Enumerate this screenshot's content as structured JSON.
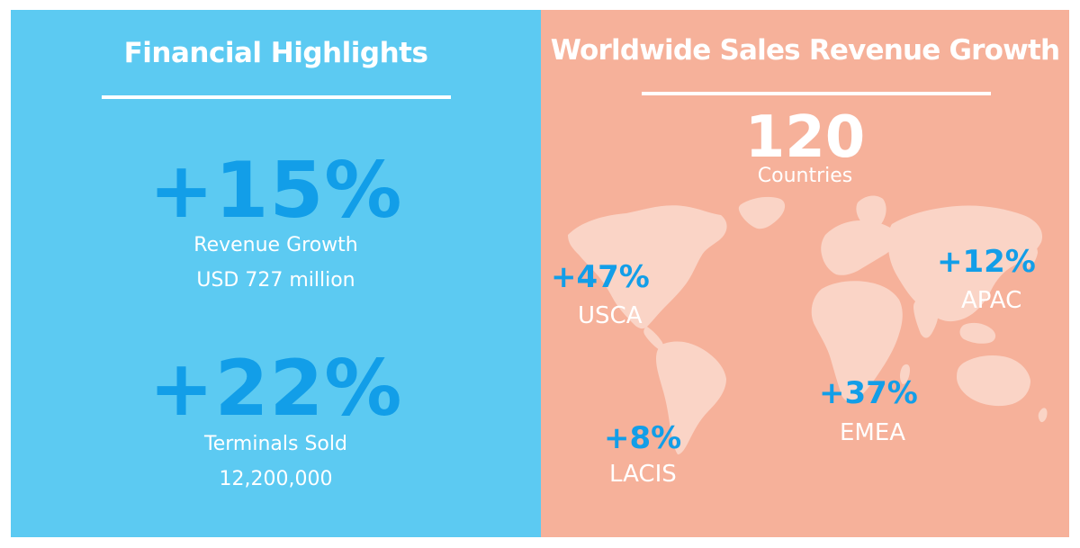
{
  "left": {
    "title": "Financial Highlights",
    "stats": [
      {
        "value": "+15%",
        "line1": "Revenue Growth",
        "line2": "USD 727 million"
      },
      {
        "value": "+22%",
        "line1": "Terminals Sold",
        "line2": "12,200,000"
      }
    ]
  },
  "right": {
    "title": "Worldwide Sales Revenue Growth",
    "countries": {
      "value": "120",
      "label": "Countries"
    },
    "regions": [
      {
        "pct": "+47%",
        "name": "USCA"
      },
      {
        "pct": "+12%",
        "name": "APAC"
      },
      {
        "pct": "+37%",
        "name": "EMEA"
      },
      {
        "pct": "+8%",
        "name": "LACIS"
      }
    ]
  },
  "colors": {
    "left_bg": "#5ccaf2",
    "right_bg": "#f6b19a",
    "accent": "#129ee8",
    "map_land": "#fad4c6",
    "text": "#ffffff"
  }
}
